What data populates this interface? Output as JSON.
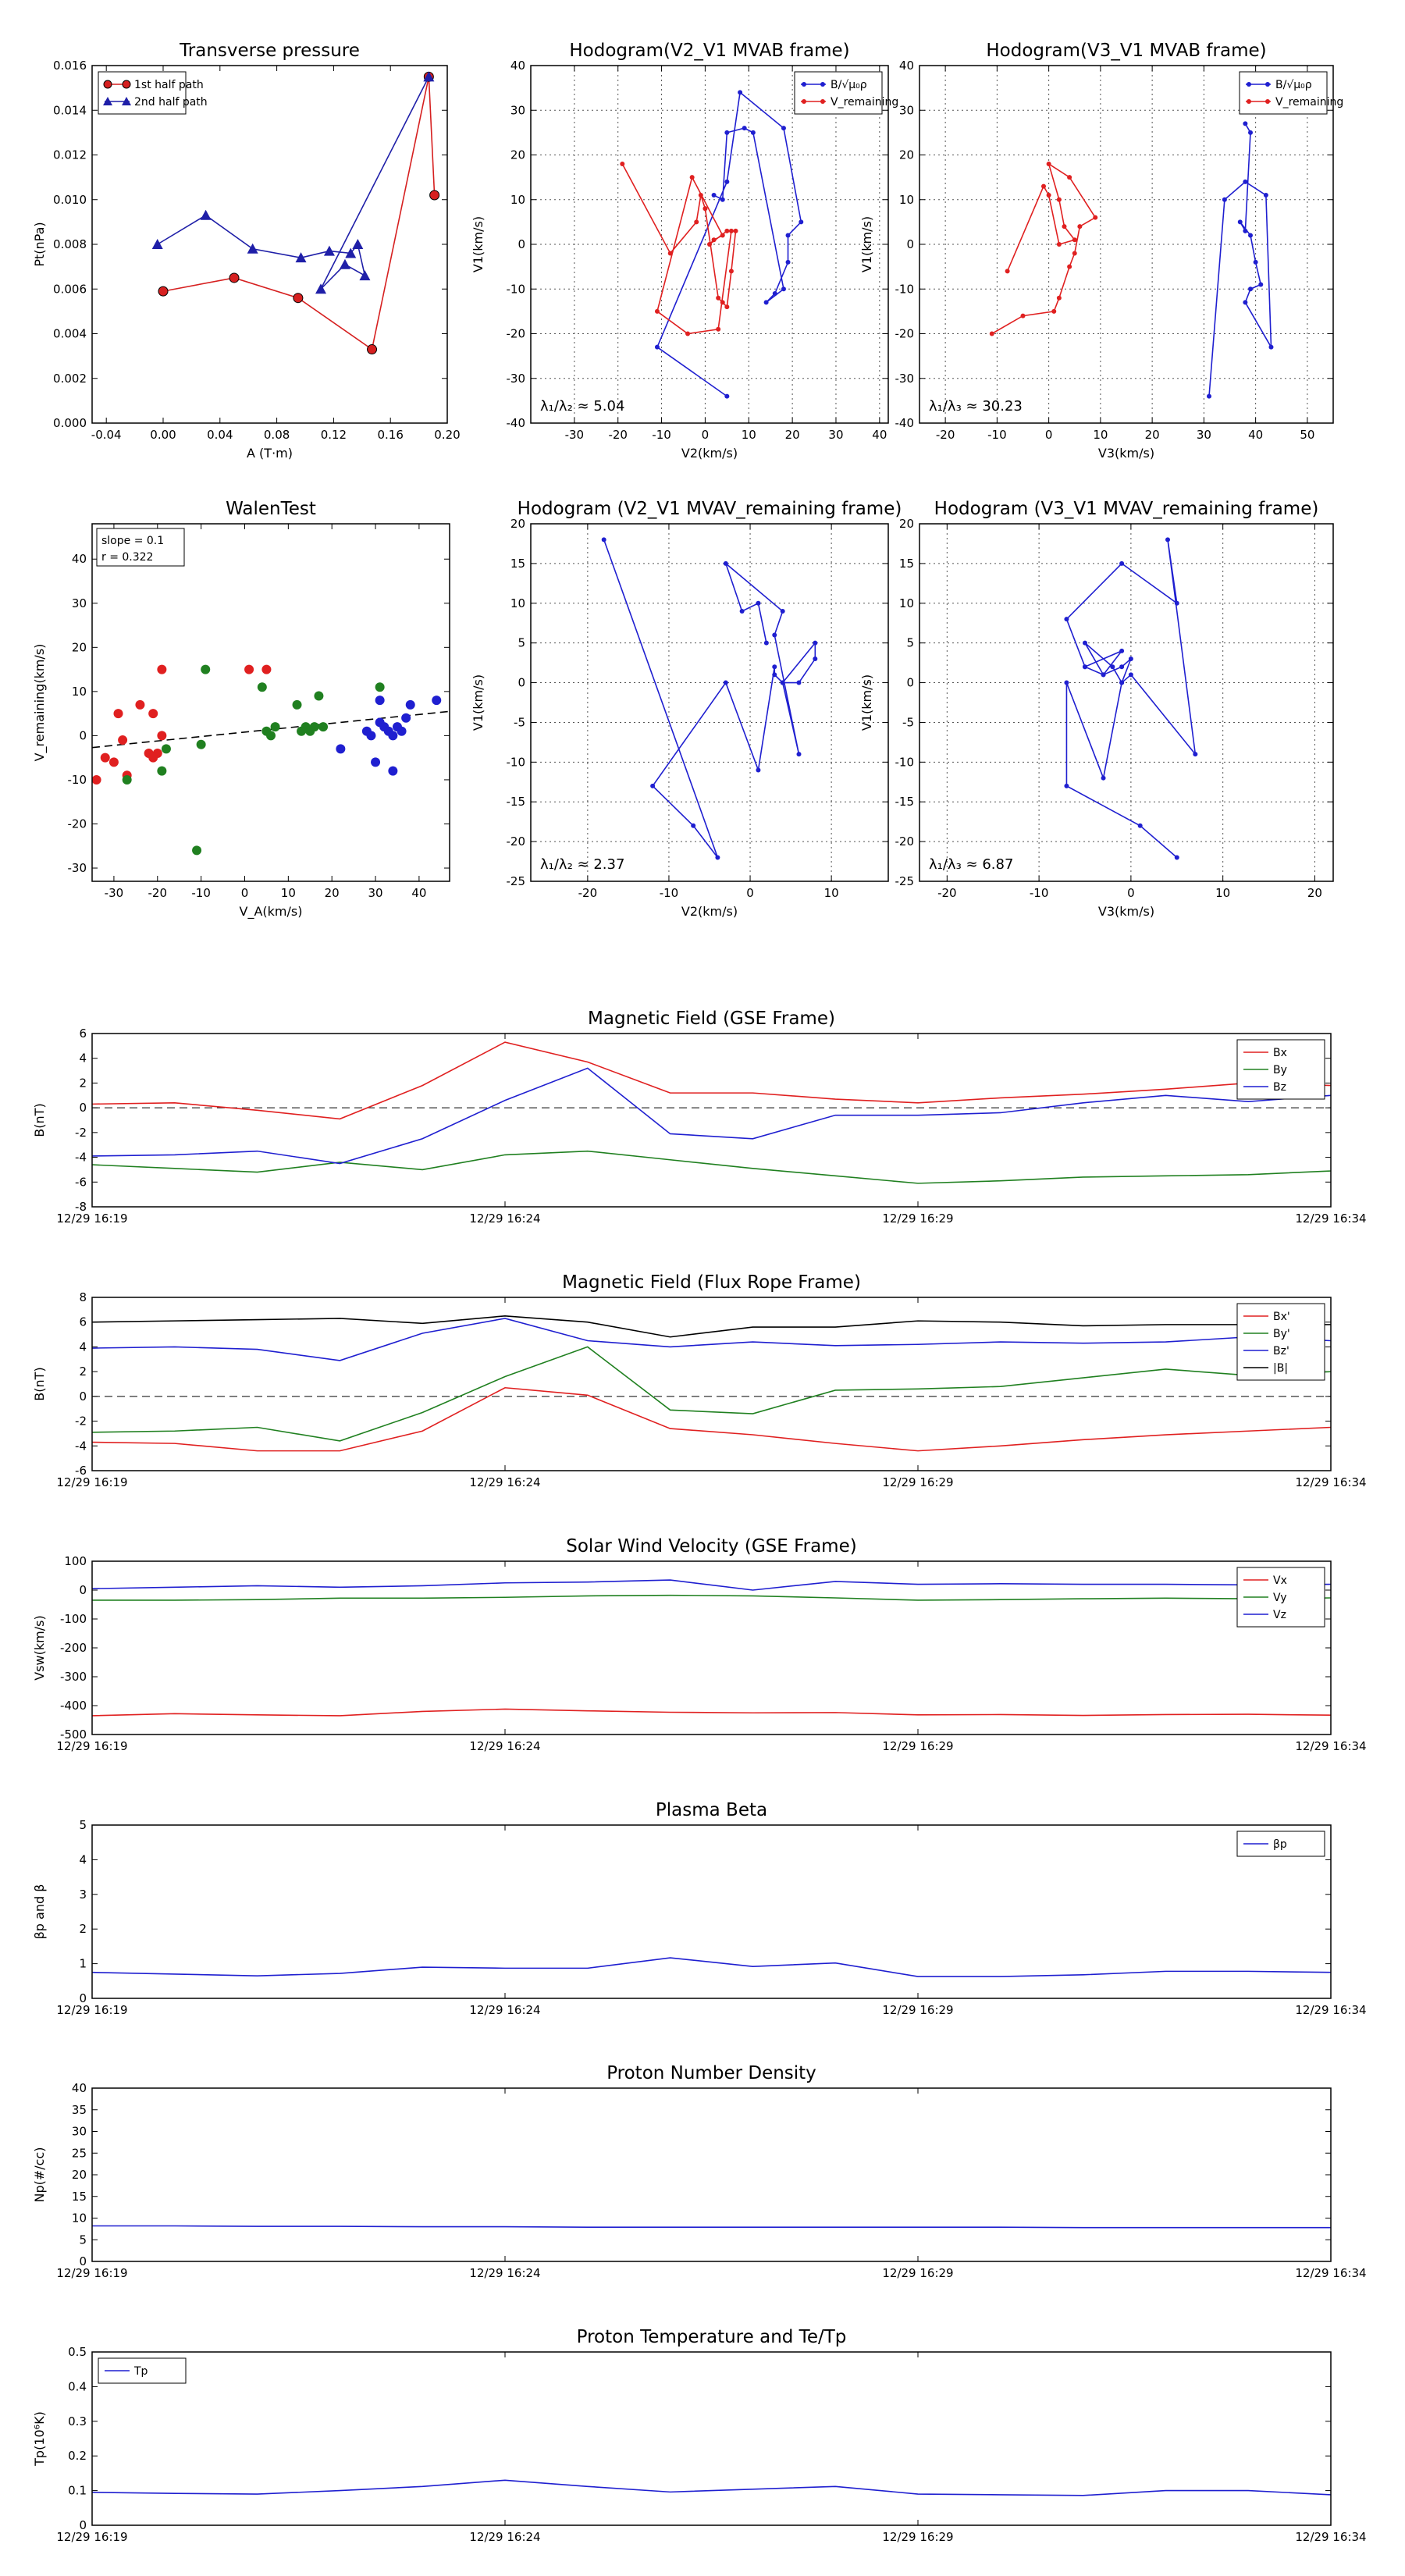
{
  "chart_data": [
    {
      "id": "tp",
      "type": "line-marker",
      "title": "Transverse pressure",
      "xlabel": "A (T·m)",
      "ylabel": "Pt(nPa)",
      "xlim": [
        -0.05,
        0.2
      ],
      "ylim": [
        0,
        0.016
      ],
      "xticks": [
        -0.04,
        0.0,
        0.04,
        0.08,
        0.12,
        0.16,
        0.2
      ],
      "xticklabels": [
        "-0.04",
        "0.00",
        "0.04",
        "0.08",
        "0.12",
        "0.16",
        "0.20"
      ],
      "yticks": [
        0,
        0.002,
        0.004,
        0.006,
        0.008,
        0.01,
        0.012,
        0.014,
        0.016
      ],
      "yticklabels": [
        "0.000",
        "0.002",
        "0.004",
        "0.006",
        "0.008",
        "0.010",
        "0.012",
        "0.014",
        "0.016"
      ],
      "grid": false,
      "legend": "top-left",
      "series": [
        {
          "name": "1st half path",
          "color": "#d62020",
          "marker": "circle",
          "x": [
            0.0,
            0.05,
            0.095,
            0.147,
            0.187,
            0.191
          ],
          "y": [
            0.0059,
            0.0065,
            0.0056,
            0.0033,
            0.0155,
            0.0102
          ]
        },
        {
          "name": "2nd half path",
          "color": "#1f1fa8",
          "marker": "triangle",
          "x": [
            -0.004,
            0.03,
            0.063,
            0.097,
            0.117,
            0.132,
            0.137,
            0.142,
            0.128,
            0.111,
            0.187
          ],
          "y": [
            0.008,
            0.0093,
            0.0078,
            0.0074,
            0.0077,
            0.0076,
            0.008,
            0.0066,
            0.0071,
            0.006,
            0.0155
          ]
        }
      ]
    },
    {
      "id": "h1",
      "type": "hodogram",
      "title": "Hodogram(V2_V1 MVAB frame)",
      "xlabel": "V2(km/s)",
      "ylabel": "V1(km/s)",
      "xlim": [
        -40,
        42
      ],
      "ylim": [
        -40,
        40
      ],
      "xticks": [
        -30,
        -20,
        -10,
        0,
        10,
        20,
        30,
        40
      ],
      "yticks": [
        -40,
        -30,
        -20,
        -10,
        0,
        10,
        20,
        30,
        40
      ],
      "grid": true,
      "legend": "top-right",
      "annotation": "λ₁/λ₂ ≈ 5.04",
      "series": [
        {
          "name": "B/√μ₀ρ",
          "color": "#1f1fd0",
          "marker": "dot",
          "x": [
            5,
            -11,
            5,
            8,
            18,
            22,
            19,
            19,
            16,
            14,
            18,
            11,
            9,
            5,
            4,
            2
          ],
          "y": [
            -34,
            -23,
            14,
            34,
            26,
            5,
            2,
            -4,
            -11,
            -13,
            -10,
            25,
            26,
            25,
            10,
            11
          ]
        },
        {
          "name": "V_remaining",
          "color": "#e02020",
          "marker": "dot",
          "x": [
            -19,
            -8,
            -2,
            -1,
            0,
            3,
            4,
            5,
            6,
            7,
            5,
            1,
            2,
            4,
            -3,
            -11,
            -4,
            3,
            6
          ],
          "y": [
            18,
            -2,
            5,
            11,
            8,
            -12,
            -13,
            -14,
            -6,
            3,
            3,
            0,
            1,
            2,
            15,
            -15,
            -20,
            -19,
            3
          ]
        }
      ]
    },
    {
      "id": "h2",
      "type": "hodogram",
      "title": "Hodogram(V3_V1 MVAB frame)",
      "xlabel": "V3(km/s)",
      "ylabel": "V1(km/s)",
      "xlim": [
        -25,
        55
      ],
      "ylim": [
        -40,
        40
      ],
      "xticks": [
        -20,
        -10,
        0,
        10,
        20,
        30,
        40,
        50
      ],
      "yticks": [
        -40,
        -30,
        -20,
        -10,
        0,
        10,
        20,
        30,
        40
      ],
      "grid": true,
      "legend": "top-right",
      "annotation": "λ₁/λ₃ ≈ 30.23",
      "series": [
        {
          "name": "B/√μ₀ρ",
          "color": "#1f1fd0",
          "marker": "dot",
          "x": [
            31,
            34,
            38,
            42,
            43,
            38,
            39,
            41,
            40,
            39,
            37,
            38,
            39,
            38
          ],
          "y": [
            -34,
            10,
            14,
            11,
            -23,
            -13,
            -10,
            -9,
            -4,
            2,
            5,
            3,
            25,
            27
          ]
        },
        {
          "name": "V_remaining",
          "color": "#e02020",
          "marker": "dot",
          "x": [
            -11,
            -5,
            1,
            2,
            4,
            5,
            6,
            9,
            4,
            0,
            2,
            3,
            5,
            2,
            0,
            -1,
            -8
          ],
          "y": [
            -20,
            -16,
            -15,
            -12,
            -5,
            -2,
            4,
            6,
            15,
            18,
            10,
            4,
            1,
            0,
            11,
            13,
            -6
          ]
        }
      ]
    },
    {
      "id": "walen",
      "type": "scatter",
      "title": "WalenTest",
      "xlabel": "V_A(km/s)",
      "ylabel": "V_remaining(km/s)",
      "xlim": [
        -35,
        47
      ],
      "ylim": [
        -33,
        48
      ],
      "xticks": [
        -30,
        -20,
        -10,
        0,
        10,
        20,
        30,
        40
      ],
      "yticks": [
        -30,
        -20,
        -10,
        0,
        10,
        20,
        30,
        40
      ],
      "grid": false,
      "annotation_lines": [
        "slope = 0.1",
        "r = 0.322"
      ],
      "fit": {
        "slope": 0.1,
        "intercept": 0.8
      },
      "series": [
        {
          "name": "red",
          "color": "#e02020",
          "x": [
            -34,
            -32,
            -30,
            -29,
            -28,
            -27,
            -24,
            -22,
            -21,
            -20,
            -19,
            -19,
            -21,
            1,
            5
          ],
          "y": [
            -10,
            -5,
            -6,
            5,
            -1,
            -9,
            7,
            -4,
            5,
            -4,
            0,
            15,
            -5,
            15,
            15
          ]
        },
        {
          "name": "green",
          "color": "#208020",
          "x": [
            -27,
            -19,
            -18,
            -11,
            -10,
            -9,
            4,
            5,
            6,
            7,
            12,
            13,
            14,
            15,
            16,
            17,
            18,
            31
          ],
          "y": [
            -10,
            -8,
            -3,
            -26,
            -2,
            15,
            11,
            1,
            0,
            2,
            7,
            1,
            2,
            1,
            2,
            9,
            2,
            11
          ]
        },
        {
          "name": "blue",
          "color": "#1f1fd0",
          "x": [
            22,
            28,
            29,
            30,
            31,
            31,
            32,
            33,
            34,
            34,
            35,
            36,
            37,
            38,
            44
          ],
          "y": [
            -3,
            1,
            0,
            -6,
            3,
            8,
            2,
            1,
            -8,
            0,
            2,
            1,
            4,
            7,
            8
          ]
        }
      ]
    },
    {
      "id": "h3",
      "type": "hodogram",
      "title": "Hodogram (V2_V1 MVAV_remaining frame)",
      "xlabel": "V2(km/s)",
      "ylabel": "V1(km/s)",
      "xlim": [
        -27,
        17
      ],
      "ylim": [
        -25,
        20
      ],
      "xticks": [
        -20,
        -10,
        0,
        10
      ],
      "yticks": [
        -25,
        -20,
        -15,
        -10,
        -5,
        0,
        5,
        10,
        15,
        20
      ],
      "grid": true,
      "legend": "none",
      "annotation": "λ₁/λ₂ ≈ 2.37",
      "series": [
        {
          "name": "V",
          "color": "#1f1fd0",
          "marker": "dot",
          "x": [
            -18,
            -4,
            -7,
            -12,
            -3,
            1,
            3,
            3,
            4,
            6,
            8,
            8,
            4,
            6,
            3,
            4,
            -3,
            -1,
            1,
            2
          ],
          "y": [
            18,
            -22,
            -18,
            -13,
            0,
            -11,
            2,
            1,
            0,
            0,
            3,
            5,
            0,
            -9,
            6,
            9,
            15,
            9,
            10,
            5
          ]
        }
      ]
    },
    {
      "id": "h4",
      "type": "hodogram",
      "title": "Hodogram (V3_V1 MVAV_remaining frame)",
      "xlabel": "V3(km/s)",
      "ylabel": "V1(km/s)",
      "xlim": [
        -23,
        22
      ],
      "ylim": [
        -25,
        20
      ],
      "xticks": [
        -20,
        -10,
        0,
        10,
        20
      ],
      "yticks": [
        -25,
        -20,
        -15,
        -10,
        -5,
        0,
        5,
        10,
        15,
        20
      ],
      "grid": true,
      "legend": "none",
      "annotation": "λ₁/λ₃ ≈ 6.87",
      "series": [
        {
          "name": "V",
          "color": "#1f1fd0",
          "marker": "dot",
          "x": [
            5,
            1,
            -7,
            -7,
            -3,
            -1,
            0,
            -1,
            -3,
            -5,
            -2,
            -1,
            0,
            7,
            4,
            5,
            -1,
            -7,
            -5,
            -3,
            -1,
            -5
          ],
          "y": [
            -22,
            -18,
            -13,
            0,
            -12,
            0,
            3,
            2,
            1,
            5,
            2,
            0,
            1,
            -9,
            18,
            10,
            15,
            8,
            2,
            1,
            4,
            2
          ]
        }
      ]
    },
    {
      "id": "bgse",
      "type": "line",
      "title": "Magnetic Field (GSE Frame)",
      "ylabel": "B(nT)",
      "ylim": [
        -8,
        6
      ],
      "yticks": [
        -8,
        -6,
        -4,
        -2,
        0,
        2,
        4,
        6
      ],
      "xticklabels": [
        "12/29 16:19",
        "12/29 16:24",
        "12/29 16:29",
        "12/29 16:34"
      ],
      "zero_line": true,
      "legend": "top-right",
      "series": [
        {
          "name": "Bx",
          "color": "#e02020",
          "values": [
            0.3,
            0.4,
            -0.2,
            -0.9,
            1.8,
            5.3,
            3.7,
            1.2,
            1.2,
            0.7,
            0.4,
            0.8,
            1.1,
            1.5,
            2.0,
            1.8
          ]
        },
        {
          "name": "By",
          "color": "#208020",
          "values": [
            -4.6,
            -4.9,
            -5.2,
            -4.4,
            -5.0,
            -3.8,
            -3.5,
            -4.2,
            -4.9,
            -5.5,
            -6.1,
            -5.9,
            -5.6,
            -5.5,
            -5.4,
            -5.1
          ]
        },
        {
          "name": "Bz",
          "color": "#1f1fd0",
          "values": [
            -3.9,
            -3.8,
            -3.5,
            -4.5,
            -2.5,
            0.6,
            3.2,
            -2.1,
            -2.5,
            -0.6,
            -0.6,
            -0.4,
            0.4,
            1.0,
            0.5,
            1.0
          ]
        }
      ]
    },
    {
      "id": "bfr",
      "type": "line",
      "title": "Magnetic Field (Flux Rope Frame)",
      "ylabel": "B(nT)",
      "ylim": [
        -6,
        8
      ],
      "yticks": [
        -6,
        -4,
        -2,
        0,
        2,
        4,
        6,
        8
      ],
      "xticklabels": [
        "12/29 16:19",
        "12/29 16:24",
        "12/29 16:29",
        "12/29 16:34"
      ],
      "zero_line": true,
      "legend": "top-right",
      "series": [
        {
          "name": "Bx'",
          "color": "#e02020",
          "values": [
            -3.7,
            -3.8,
            -4.4,
            -4.4,
            -2.8,
            0.7,
            0.1,
            -2.6,
            -3.1,
            -3.8,
            -4.4,
            -4.0,
            -3.5,
            -3.1,
            -2.8,
            -2.5
          ]
        },
        {
          "name": "By'",
          "color": "#208020",
          "values": [
            -2.9,
            -2.8,
            -2.5,
            -3.6,
            -1.3,
            1.6,
            4.0,
            -1.1,
            -1.4,
            0.5,
            0.6,
            0.8,
            1.5,
            2.2,
            1.7,
            2.0
          ]
        },
        {
          "name": "Bz'",
          "color": "#1f1fd0",
          "values": [
            3.9,
            4.0,
            3.8,
            2.9,
            5.1,
            6.3,
            4.5,
            4.0,
            4.4,
            4.1,
            4.2,
            4.4,
            4.3,
            4.4,
            4.8,
            4.5
          ]
        },
        {
          "name": "|B|",
          "color": "#000000",
          "values": [
            6.0,
            6.1,
            6.2,
            6.3,
            5.9,
            6.5,
            6.0,
            4.8,
            5.6,
            5.6,
            6.1,
            6.0,
            5.7,
            5.8,
            5.8,
            5.8
          ]
        }
      ]
    },
    {
      "id": "vsw",
      "type": "line",
      "title": "Solar Wind Velocity (GSE Frame)",
      "ylabel": "Vsw(km/s)",
      "ylim": [
        -500,
        100
      ],
      "yticks": [
        -500,
        -400,
        -300,
        -200,
        -100,
        0,
        100
      ],
      "xticklabels": [
        "12/29 16:19",
        "12/29 16:24",
        "12/29 16:29",
        "12/29 16:34"
      ],
      "zero_line": false,
      "legend": "top-right",
      "series": [
        {
          "name": "Vx",
          "color": "#e02020",
          "values": [
            -435,
            -428,
            -432,
            -435,
            -420,
            -412,
            -418,
            -423,
            -425,
            -424,
            -432,
            -431,
            -434,
            -431,
            -430,
            -433
          ]
        },
        {
          "name": "Vy",
          "color": "#208020",
          "values": [
            -35,
            -35,
            -33,
            -28,
            -28,
            -25,
            -20,
            -18,
            -20,
            -27,
            -35,
            -33,
            -30,
            -28,
            -30,
            -27
          ]
        },
        {
          "name": "Vz",
          "color": "#1f1fd0",
          "values": [
            5,
            10,
            15,
            10,
            15,
            25,
            28,
            35,
            0,
            30,
            20,
            22,
            20,
            20,
            18,
            20
          ]
        }
      ]
    },
    {
      "id": "beta",
      "type": "line",
      "title": "Plasma Beta",
      "ylabel": "βp and β",
      "ylim": [
        0,
        5
      ],
      "yticks": [
        0,
        1,
        2,
        3,
        4,
        5
      ],
      "xticklabels": [
        "12/29 16:19",
        "12/29 16:24",
        "12/29 16:29",
        "12/29 16:34"
      ],
      "zero_line": false,
      "legend": "top-right",
      "series": [
        {
          "name": "βp",
          "color": "#1f1fd0",
          "values": [
            0.75,
            0.7,
            0.65,
            0.72,
            0.9,
            0.87,
            0.87,
            1.17,
            0.92,
            1.02,
            0.63,
            0.63,
            0.68,
            0.78,
            0.78,
            0.75
          ]
        }
      ]
    },
    {
      "id": "np",
      "type": "line",
      "title": "Proton Number Density",
      "ylabel": "Np(#/cc)",
      "ylim": [
        0,
        40
      ],
      "yticks": [
        0,
        5,
        10,
        15,
        20,
        25,
        30,
        35,
        40
      ],
      "xticklabels": [
        "12/29 16:19",
        "12/29 16:24",
        "12/29 16:29",
        "12/29 16:34"
      ],
      "zero_line": false,
      "legend": "none",
      "series": [
        {
          "name": "Np",
          "color": "#1f1fd0",
          "values": [
            8.2,
            8.2,
            8.1,
            8.1,
            8.0,
            8.0,
            7.9,
            7.9,
            7.9,
            7.9,
            7.9,
            7.9,
            7.8,
            7.8,
            7.8,
            7.8
          ]
        }
      ]
    },
    {
      "id": "tpp",
      "type": "line",
      "title": "Proton Temperature and Te/Tp",
      "ylabel": "Tp(10⁶K)",
      "ylim": [
        0,
        0.5
      ],
      "yticks": [
        0.0,
        0.1,
        0.2,
        0.3,
        0.4,
        0.5
      ],
      "xticklabels": [
        "12/29 16:19",
        "12/29 16:24",
        "12/29 16:29",
        "12/29 16:34"
      ],
      "zero_line": false,
      "legend": "top-left",
      "series": [
        {
          "name": "Tp",
          "color": "#1f1fd0",
          "values": [
            0.095,
            0.092,
            0.09,
            0.1,
            0.112,
            0.13,
            0.112,
            0.096,
            0.104,
            0.112,
            0.09,
            0.088,
            0.086,
            0.1,
            0.1,
            0.088
          ]
        }
      ]
    }
  ]
}
